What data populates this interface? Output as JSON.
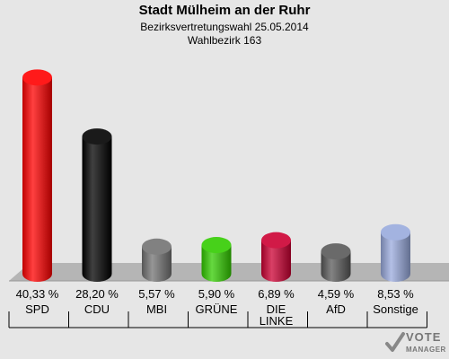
{
  "header": {
    "title": "Stadt Mülheim an der Ruhr",
    "subtitle": "Bezirksvertretungswahl 25.05.2014",
    "district": "Wahlbezirk 163"
  },
  "logo": {
    "line1": "VOTE",
    "line2": "MANAGER"
  },
  "chart_data": {
    "type": "bar",
    "categories": [
      "SPD",
      "CDU",
      "MBI",
      "GRÜNE",
      "DIE LINKE",
      "AfD",
      "Sonstige"
    ],
    "category_lines": [
      [
        "SPD"
      ],
      [
        "CDU"
      ],
      [
        "MBI"
      ],
      [
        "GRÜNE"
      ],
      [
        "DIE",
        "LINKE"
      ],
      [
        "AfD"
      ],
      [
        "Sonstige"
      ]
    ],
    "values": [
      40.33,
      28.2,
      5.57,
      5.9,
      6.89,
      4.59,
      8.53
    ],
    "labels": [
      "40,33 %",
      "28,20 %",
      "5,57 %",
      "5,90 %",
      "6,89 %",
      "4,59 %",
      "8,53 %"
    ],
    "colors": [
      "#ff0000",
      "#000000",
      "#737373",
      "#33cc00",
      "#cc0033",
      "#595959",
      "#99aadd"
    ],
    "ylim": [
      0,
      45
    ],
    "grid": false
  }
}
